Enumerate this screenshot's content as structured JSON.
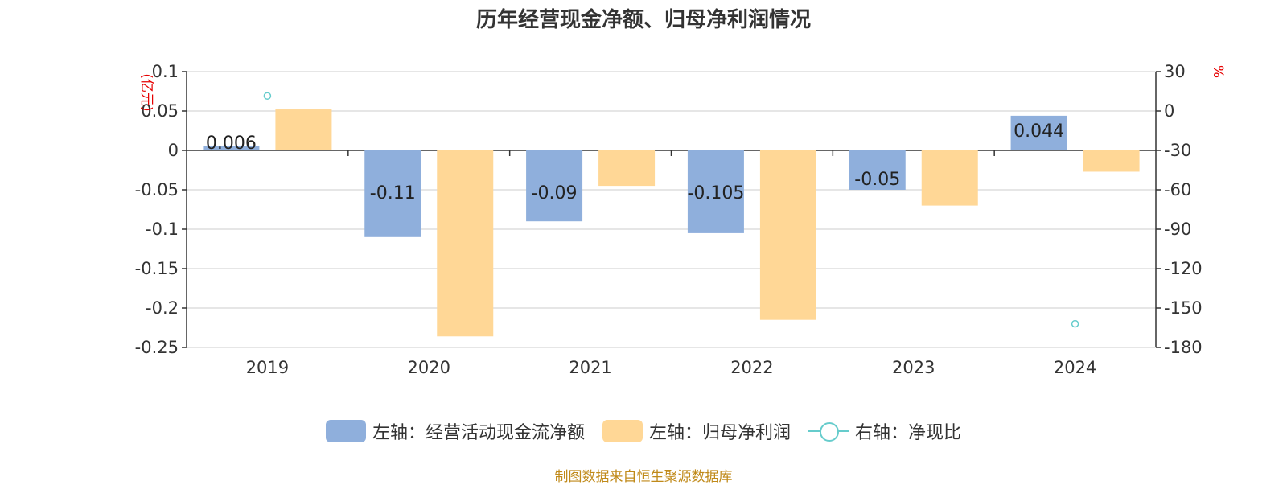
{
  "title": "历年经营现金净额、归母净利润情况",
  "source": "制图数据来自恒生聚源数据库",
  "legend": {
    "s1": "左轴：经营活动现金流净额",
    "s2": "左轴：归母净利润",
    "s3": "右轴：净现比"
  },
  "colors": {
    "operating_cash_flow": "#8fafdc",
    "net_profit": "#ffd796",
    "cash_ratio": "#66cccc",
    "unit": "#e60000",
    "source": "#c08a1a"
  },
  "chart_data": {
    "type": "bar",
    "title": "历年经营现金净额、归母净利润情况",
    "categories": [
      "2019",
      "2020",
      "2021",
      "2022",
      "2023",
      "2024"
    ],
    "left_axis": {
      "unit": "(亿元)",
      "ylim": [
        -0.25,
        0.1
      ],
      "ticks": [
        "0.1",
        "0.05",
        "0",
        "-0.05",
        "-0.1",
        "-0.15",
        "-0.2",
        "-0.25"
      ]
    },
    "right_axis": {
      "unit": "%",
      "ylim": [
        -180,
        30
      ],
      "ticks": [
        "30",
        "0",
        "-30",
        "-60",
        "-90",
        "-120",
        "-150",
        "-180"
      ]
    },
    "series": [
      {
        "name": "左轴：经营活动现金流净额",
        "axis": "left",
        "kind": "bar",
        "values": [
          0.006,
          -0.11,
          -0.09,
          -0.105,
          -0.05,
          0.044
        ],
        "labels": [
          "0.006",
          "-0.11",
          "-0.09",
          "-0.105",
          "-0.05",
          "0.044"
        ]
      },
      {
        "name": "左轴：归母净利润",
        "axis": "left",
        "kind": "bar",
        "values": [
          0.052,
          -0.236,
          -0.045,
          -0.215,
          -0.07,
          -0.027
        ]
      },
      {
        "name": "右轴：净现比",
        "axis": "right",
        "kind": "scatter",
        "values": [
          11.5,
          null,
          null,
          null,
          null,
          -162
        ]
      }
    ],
    "grid": true,
    "legend_position": "bottom"
  }
}
